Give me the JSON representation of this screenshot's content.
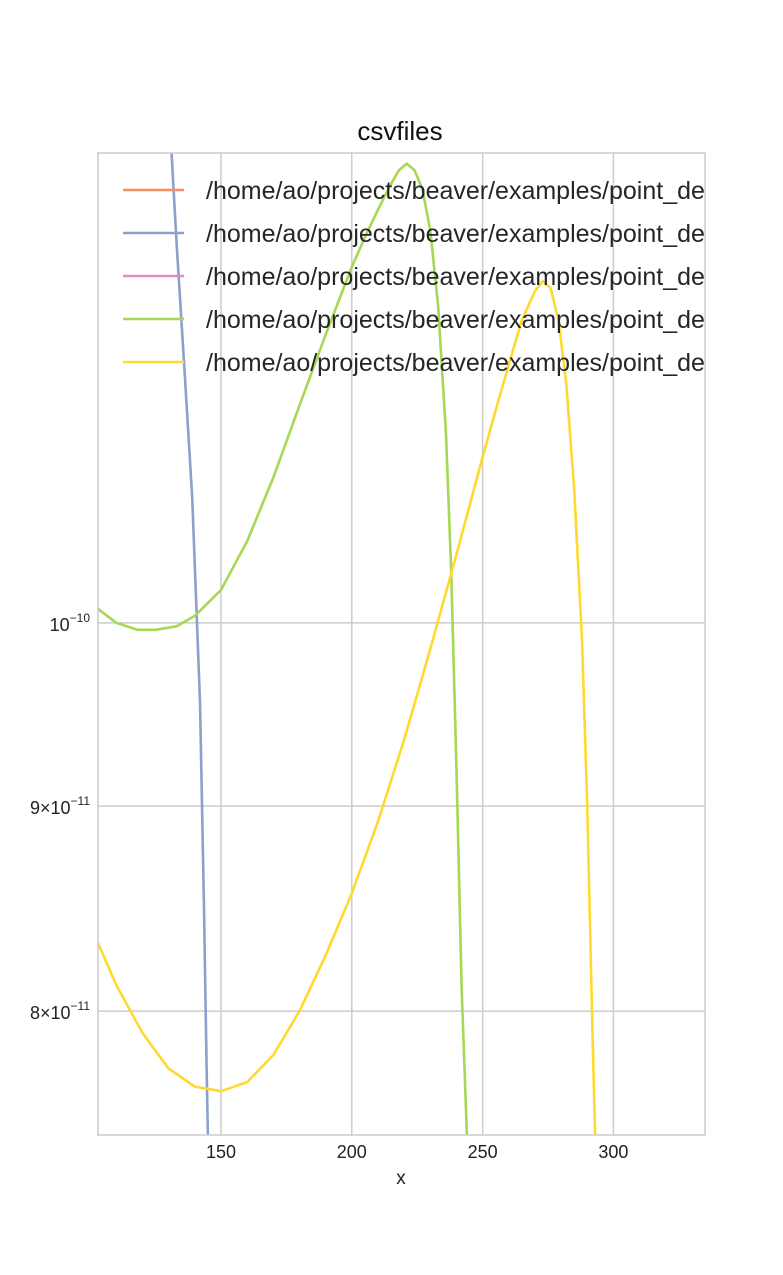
{
  "chart_data": {
    "type": "line",
    "title": "csvfiles",
    "xlabel": "x",
    "ylabel": "",
    "xlim": [
      103,
      335
    ],
    "ylim": [
      7.45e-11,
      1.31e-10
    ],
    "yscale": "log",
    "grid": true,
    "legend_position": "top-left",
    "x_ticks": [
      150,
      200,
      250,
      300
    ],
    "x_tick_labels": [
      "150",
      "200",
      "250",
      "300"
    ],
    "y_ticks": [
      {
        "value": 1e-10,
        "mantissa": "",
        "exponent": "−10"
      },
      {
        "value": 9e-11,
        "mantissa": "9",
        "exponent": "−11"
      },
      {
        "value": 8e-11,
        "mantissa": "8",
        "exponent": "−11"
      }
    ],
    "series": [
      {
        "name": "/home/ao/projects/beaver/examples/point_de",
        "color": "#fc8d62",
        "points": []
      },
      {
        "name": "/home/ao/projects/beaver/examples/point_de",
        "color": "#8da0cb",
        "points": [
          [
            130,
            1.35e-10
          ],
          [
            133,
            1.245e-10
          ],
          [
            136,
            1.158e-10
          ],
          [
            139,
            1.075e-10
          ],
          [
            142,
            9.55e-11
          ],
          [
            143.5,
            8.5e-11
          ],
          [
            144.5,
            7.75e-11
          ],
          [
            145,
            7.45e-11
          ]
        ]
      },
      {
        "name": "/home/ao/projects/beaver/examples/point_de",
        "color": "#e78ac3",
        "points": []
      },
      {
        "name": "/home/ao/projects/beaver/examples/point_de",
        "color": "#a6d854",
        "points": [
          [
            103,
            1.008e-10
          ],
          [
            110,
            1e-10
          ],
          [
            118,
            9.96e-11
          ],
          [
            125,
            9.96e-11
          ],
          [
            133,
            9.98e-11
          ],
          [
            140,
            1.004e-10
          ],
          [
            150,
            1.019e-10
          ],
          [
            160,
            1.048e-10
          ],
          [
            170,
            1.087e-10
          ],
          [
            180,
            1.133e-10
          ],
          [
            190,
            1.18e-10
          ],
          [
            200,
            1.227e-10
          ],
          [
            205,
            1.248e-10
          ],
          [
            210,
            1.268e-10
          ],
          [
            215,
            1.287e-10
          ],
          [
            218,
            1.297e-10
          ],
          [
            221,
            1.302e-10
          ],
          [
            224,
            1.297e-10
          ],
          [
            227,
            1.283e-10
          ],
          [
            230,
            1.253e-10
          ],
          [
            233,
            1.2e-10
          ],
          [
            236,
            1.115e-10
          ],
          [
            238,
            1.03e-10
          ],
          [
            240,
            9.2e-11
          ],
          [
            242,
            8.1e-11
          ],
          [
            244,
            7.45e-11
          ]
        ]
      },
      {
        "name": "/home/ao/projects/beaver/examples/point_de",
        "color": "#ffd92f",
        "points": [
          [
            103,
            8.32e-11
          ],
          [
            110,
            8.12e-11
          ],
          [
            120,
            7.9e-11
          ],
          [
            130,
            7.74e-11
          ],
          [
            140,
            7.66e-11
          ],
          [
            150,
            7.64e-11
          ],
          [
            160,
            7.68e-11
          ],
          [
            170,
            7.8e-11
          ],
          [
            180,
            8e-11
          ],
          [
            190,
            8.26e-11
          ],
          [
            200,
            8.56e-11
          ],
          [
            210,
            8.92e-11
          ],
          [
            220,
            9.35e-11
          ],
          [
            230,
            9.85e-11
          ],
          [
            240,
            1.04e-10
          ],
          [
            250,
            1.1e-10
          ],
          [
            255,
            1.13e-10
          ],
          [
            260,
            1.16e-10
          ],
          [
            265,
            1.19e-10
          ],
          [
            270,
            1.21e-10
          ],
          [
            273,
            1.217e-10
          ],
          [
            276,
            1.212e-10
          ],
          [
            279,
            1.19e-10
          ],
          [
            282,
            1.147e-10
          ],
          [
            285,
            1.08e-10
          ],
          [
            288,
            9.9e-11
          ],
          [
            290,
            9e-11
          ],
          [
            292,
            7.9e-11
          ],
          [
            293,
            7.45e-11
          ]
        ]
      }
    ]
  }
}
